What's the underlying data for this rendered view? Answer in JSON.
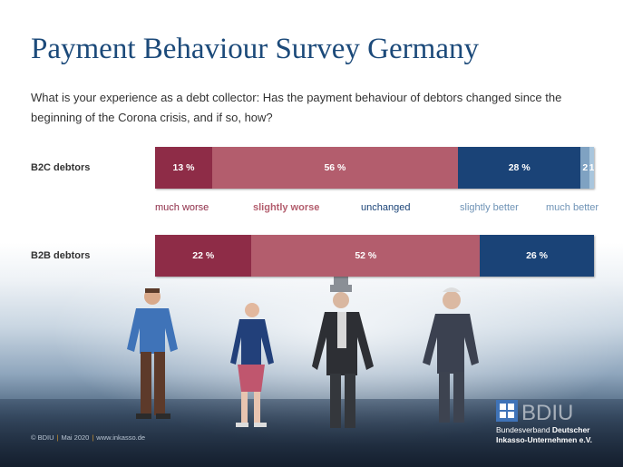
{
  "title": "Payment Behaviour Survey Germany",
  "question": "What is your experience as a debt collector: Has the payment behaviour of debtors changed since the beginning of the Corona crisis, and if so, how?",
  "colors": {
    "much_worse": "#8e2c47",
    "slightly_worse": "#b35d6d",
    "unchanged": "#1a4377",
    "slightly_better": "#7fa2c2",
    "much_better": "#a9c6dd"
  },
  "chart_data": {
    "type": "bar",
    "orientation": "horizontal",
    "stacked": true,
    "normalized": true,
    "categories": [
      "B2C debtors",
      "B2B debtors"
    ],
    "series": [
      {
        "name": "much worse",
        "values": [
          13,
          22
        ],
        "labels": [
          "13 %",
          "22 %"
        ]
      },
      {
        "name": "slightly worse",
        "values": [
          56,
          52
        ],
        "labels": [
          "56 %",
          "52 %"
        ]
      },
      {
        "name": "unchanged",
        "values": [
          28,
          26
        ],
        "labels": [
          "28 %",
          "26 %"
        ]
      },
      {
        "name": "slightly better",
        "values": [
          2,
          0
        ],
        "labels": [
          "2",
          ""
        ]
      },
      {
        "name": "much better",
        "values": [
          1,
          0
        ],
        "labels": [
          "1",
          ""
        ]
      }
    ]
  },
  "footer": {
    "copyright": "© BDIU",
    "date": "Mai 2020",
    "website": "www.inkasso.de"
  },
  "logo": {
    "mark": "BDIU",
    "line1_a": "Bundesverband ",
    "line1_b": "Deutscher",
    "line2": "Inkasso-Unternehmen e.V."
  }
}
